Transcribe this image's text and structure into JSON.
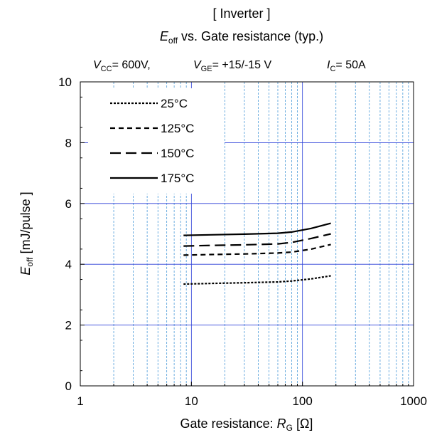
{
  "chart_data": {
    "type": "line",
    "title": "[ Inverter ]",
    "subtitle": {
      "e_main": "E",
      "e_sub": "off",
      "rest": " vs.  Gate resistance  (typ.)"
    },
    "conditions": [
      {
        "main": "V",
        "sub": "CC",
        "rest": "= 600V,"
      },
      {
        "main": "V",
        "sub": "GE",
        "rest": "= +15/-15 V"
      },
      {
        "main": "I",
        "sub": "C",
        "rest": "= 50A"
      }
    ],
    "xlabel": {
      "prefix": "Gate resistance: ",
      "main": "R",
      "sub": "G",
      "suffix": " [Ω]"
    },
    "ylabel": {
      "main": "E",
      "sub": "off",
      "suffix": " [mJ/pulse ]"
    },
    "xscale": "log",
    "xlim": [
      1,
      1000
    ],
    "ylim": [
      0,
      10
    ],
    "x_ticks": [
      1,
      10,
      100,
      1000
    ],
    "x_tick_labels": [
      "1",
      "10",
      "100",
      "1000"
    ],
    "y_ticks": [
      0,
      2,
      4,
      6,
      8,
      10
    ],
    "y_tick_labels": [
      "0",
      "2",
      "4",
      "6",
      "8",
      "10"
    ],
    "grid": true,
    "legend_placement": "top-left",
    "colors": {
      "grid_major": "#2b3fd8",
      "grid_minor": "#4a9ad8",
      "series": "#000000"
    },
    "series": [
      {
        "name": "25°C",
        "style": "dotted",
        "x": [
          8.5,
          15,
          30,
          60,
          80,
          120,
          180
        ],
        "y": [
          3.35,
          3.37,
          3.39,
          3.42,
          3.45,
          3.52,
          3.62
        ]
      },
      {
        "name": "125°C",
        "style": "dashed",
        "x": [
          8.5,
          15,
          30,
          60,
          80,
          120,
          180
        ],
        "y": [
          4.3,
          4.32,
          4.34,
          4.37,
          4.4,
          4.5,
          4.65
        ]
      },
      {
        "name": "150°C",
        "style": "longdash",
        "x": [
          8.5,
          15,
          30,
          60,
          80,
          120,
          180
        ],
        "y": [
          4.6,
          4.62,
          4.64,
          4.67,
          4.72,
          4.85,
          5.0
        ]
      },
      {
        "name": "175°C",
        "style": "solid",
        "x": [
          8.5,
          15,
          30,
          60,
          80,
          120,
          180
        ],
        "y": [
          4.95,
          4.97,
          4.99,
          5.02,
          5.06,
          5.18,
          5.35
        ]
      }
    ]
  }
}
